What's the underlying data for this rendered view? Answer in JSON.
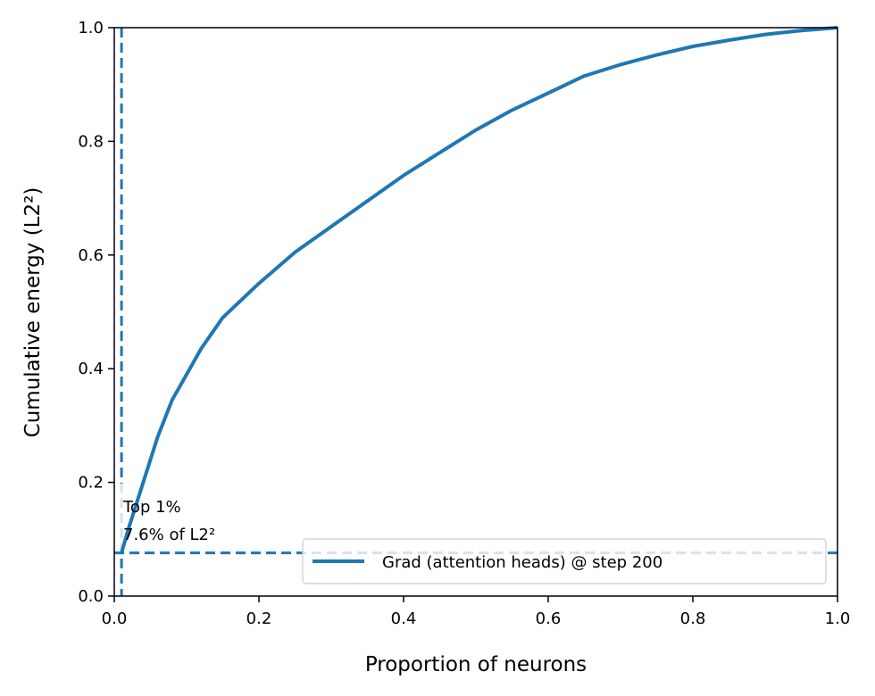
{
  "chart_data": {
    "type": "line",
    "title": "",
    "xlabel": "Proportion of neurons",
    "ylabel": "Cumulative energy (L2²)",
    "xlim": [
      0,
      1
    ],
    "ylim": [
      0,
      1
    ],
    "xticks": [
      "0.0",
      "0.2",
      "0.4",
      "0.6",
      "0.8",
      "1.0"
    ],
    "yticks": [
      "0.0",
      "0.2",
      "0.4",
      "0.6",
      "0.8",
      "1.0"
    ],
    "grid": false,
    "legend": {
      "position": "lower-right",
      "entries": [
        "Grad (attention heads) @ step 200"
      ]
    },
    "series": [
      {
        "name": "Grad (attention heads) @ step 200",
        "color": "#1f77b4",
        "x": [
          0.01,
          0.02,
          0.03,
          0.04,
          0.06,
          0.08,
          0.1,
          0.12,
          0.15,
          0.2,
          0.25,
          0.3,
          0.35,
          0.4,
          0.45,
          0.5,
          0.55,
          0.6,
          0.65,
          0.7,
          0.75,
          0.8,
          0.85,
          0.9,
          0.95,
          1.0
        ],
        "y": [
          0.076,
          0.12,
          0.16,
          0.2,
          0.28,
          0.345,
          0.39,
          0.435,
          0.49,
          0.55,
          0.605,
          0.65,
          0.695,
          0.74,
          0.78,
          0.82,
          0.855,
          0.885,
          0.915,
          0.935,
          0.952,
          0.967,
          0.978,
          0.988,
          0.995,
          1.0
        ]
      }
    ],
    "reference_lines": {
      "vertical_x": 0.01,
      "horizontal_y": 0.076,
      "color": "#1f77b4",
      "style": "dashed"
    },
    "annotation": {
      "line1": "Top 1%",
      "line2": "7.6% of L2²"
    }
  }
}
